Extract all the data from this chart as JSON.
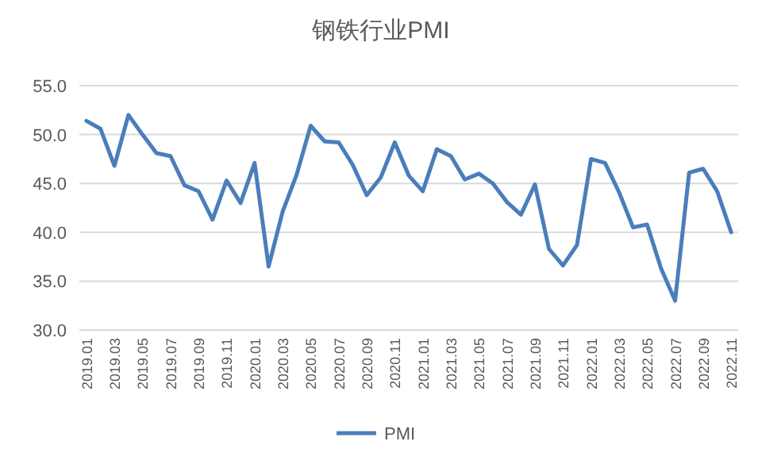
{
  "chart_data": {
    "type": "line",
    "title": "钢铁行业PMI",
    "categories": [
      "2019.01",
      null,
      "2019.03",
      null,
      "2019.05",
      null,
      "2019.07",
      null,
      "2019.09",
      null,
      "2019.11",
      null,
      "2020.01",
      null,
      "2020.03",
      null,
      "2020.05",
      null,
      "2020.07",
      null,
      "2020.09",
      null,
      "2020.11",
      null,
      "2021.01",
      null,
      "2021.03",
      null,
      "2021.05",
      null,
      "2021.07",
      null,
      "2021.09",
      null,
      "2021.11",
      null,
      "2022.01",
      null,
      "2022.03",
      null,
      "2022.05",
      null,
      "2022.07",
      null,
      "2022.09",
      null,
      "2022.11"
    ],
    "series": [
      {
        "name": "PMI",
        "color": "#4a7ebb",
        "values": [
          51.4,
          50.6,
          46.8,
          52.0,
          50.0,
          48.1,
          47.8,
          44.8,
          44.2,
          41.3,
          45.3,
          43.0,
          47.1,
          36.5,
          42.1,
          45.9,
          50.9,
          49.3,
          49.2,
          46.9,
          43.8,
          45.6,
          49.2,
          45.8,
          44.2,
          48.5,
          47.8,
          45.4,
          46.0,
          45.0,
          43.1,
          41.8,
          44.9,
          38.3,
          36.6,
          38.7,
          47.5,
          47.1,
          44.1,
          40.5,
          40.8,
          36.3,
          33.0,
          46.1,
          46.5,
          44.2,
          40.0
        ]
      }
    ],
    "ylim": [
      30,
      55
    ],
    "yticks": [
      {
        "value": 30,
        "label": "30.0"
      },
      {
        "value": 35,
        "label": "35.0"
      },
      {
        "value": 40,
        "label": "40.0"
      },
      {
        "value": 45,
        "label": "45.0"
      },
      {
        "value": 50,
        "label": "50.0"
      },
      {
        "value": 55,
        "label": "55.0"
      }
    ],
    "grid": "y",
    "legend": "bottom",
    "marker": "none",
    "line_style": "solid"
  }
}
